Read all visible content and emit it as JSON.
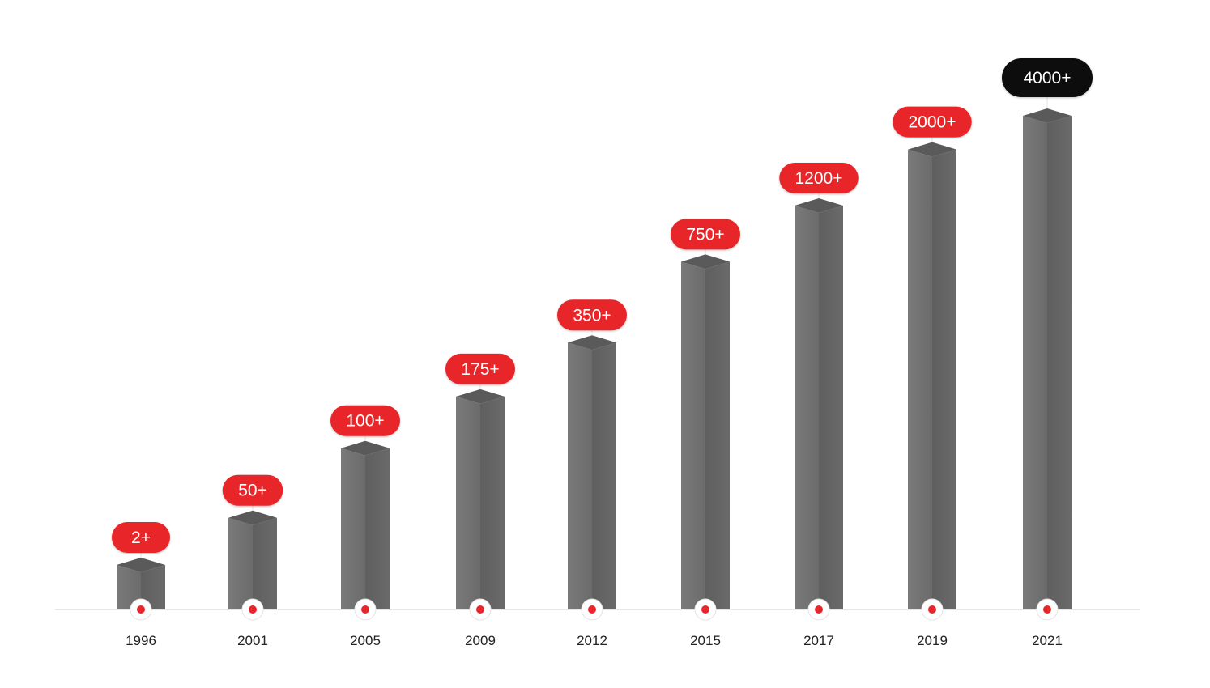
{
  "chart_data": {
    "type": "bar",
    "categories": [
      "1996",
      "2001",
      "2005",
      "2009",
      "2012",
      "2015",
      "2017",
      "2019",
      "2021"
    ],
    "values": [
      2,
      50,
      100,
      175,
      350,
      750,
      1200,
      2000,
      4000
    ],
    "data_labels": [
      "2+",
      "50+",
      "100+",
      "175+",
      "350+",
      "750+",
      "1200+",
      "2000+",
      "4000+"
    ],
    "title": "",
    "xlabel": "",
    "ylabel": "",
    "grid": false,
    "legend": "none",
    "colors": {
      "bar_front": "#747474",
      "bar_side": "#626262",
      "bar_top": "#5a5a5a",
      "label_default": "#e8262b",
      "label_highlight": "#0a0a0a",
      "marker_dot": "#e8262b",
      "baseline": "#dddddd"
    }
  }
}
